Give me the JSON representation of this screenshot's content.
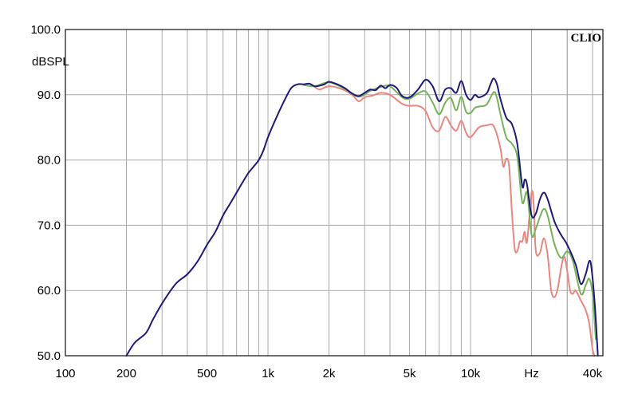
{
  "brand": "CLIO",
  "chart_data": {
    "type": "line",
    "ylabel": "dBSPL",
    "xunit": "Hz",
    "xscale": "log",
    "xlim": [
      100,
      45000
    ],
    "ylim": [
      50,
      100
    ],
    "grid": true,
    "y_ticks": [
      {
        "value": 100,
        "label": "100.0"
      },
      {
        "value": 90,
        "label": "90.0"
      },
      {
        "value": 80,
        "label": "80.0"
      },
      {
        "value": 70,
        "label": "70.0"
      },
      {
        "value": 60,
        "label": "60.0"
      },
      {
        "value": 50,
        "label": "50.0"
      }
    ],
    "x_ticks": [
      {
        "value": 100,
        "label": "100"
      },
      {
        "value": 200,
        "label": "200"
      },
      {
        "value": 500,
        "label": "500"
      },
      {
        "value": 1000,
        "label": "1k"
      },
      {
        "value": 2000,
        "label": "2k"
      },
      {
        "value": 5000,
        "label": "5k"
      },
      {
        "value": 10000,
        "label": "10k"
      },
      {
        "value": 20000,
        "label": "Hz"
      },
      {
        "value": 40000,
        "label": "40k"
      }
    ],
    "series": [
      {
        "color": "#1e1a78",
        "points": [
          [
            200,
            50.0
          ],
          [
            220,
            52.0
          ],
          [
            250,
            53.5
          ],
          [
            270,
            55.5
          ],
          [
            300,
            58.0
          ],
          [
            350,
            61.0
          ],
          [
            400,
            62.5
          ],
          [
            450,
            64.5
          ],
          [
            500,
            67.0
          ],
          [
            550,
            69.0
          ],
          [
            600,
            71.5
          ],
          [
            650,
            73.3
          ],
          [
            700,
            75.0
          ],
          [
            750,
            76.6
          ],
          [
            800,
            78.0
          ],
          [
            850,
            79.0
          ],
          [
            900,
            80.0
          ],
          [
            950,
            81.5
          ],
          [
            1000,
            83.5
          ],
          [
            1100,
            86.5
          ],
          [
            1200,
            89.0
          ],
          [
            1300,
            91.0
          ],
          [
            1400,
            91.6
          ],
          [
            1500,
            91.6
          ],
          [
            1600,
            91.7
          ],
          [
            1700,
            91.3
          ],
          [
            1800,
            91.4
          ],
          [
            1900,
            91.6
          ],
          [
            2000,
            92.0
          ],
          [
            2200,
            91.6
          ],
          [
            2400,
            91.0
          ],
          [
            2600,
            90.2
          ],
          [
            2800,
            89.8
          ],
          [
            3000,
            90.3
          ],
          [
            3200,
            90.8
          ],
          [
            3400,
            90.7
          ],
          [
            3600,
            91.4
          ],
          [
            3800,
            91.0
          ],
          [
            4000,
            91.5
          ],
          [
            4300,
            91.1
          ],
          [
            4600,
            89.8
          ],
          [
            5000,
            89.6
          ],
          [
            5500,
            90.8
          ],
          [
            6000,
            92.3
          ],
          [
            6500,
            91.3
          ],
          [
            7000,
            89.0
          ],
          [
            7500,
            90.8
          ],
          [
            8000,
            91.0
          ],
          [
            8500,
            90.3
          ],
          [
            9000,
            92.1
          ],
          [
            9500,
            90.0
          ],
          [
            10000,
            89.2
          ],
          [
            10500,
            90.0
          ],
          [
            11000,
            89.6
          ],
          [
            12000,
            90.2
          ],
          [
            12500,
            91.5
          ],
          [
            13000,
            92.5
          ],
          [
            13500,
            91.6
          ],
          [
            14000,
            89.5
          ],
          [
            15000,
            86.5
          ],
          [
            16000,
            85.5
          ],
          [
            17000,
            82.5
          ],
          [
            18000,
            76.0
          ],
          [
            18500,
            77.0
          ],
          [
            19000,
            76.2
          ],
          [
            20000,
            71.5
          ],
          [
            21000,
            71.8
          ],
          [
            22000,
            74.0
          ],
          [
            23000,
            75.0
          ],
          [
            24000,
            74.0
          ],
          [
            26000,
            70.5
          ],
          [
            28000,
            68.5
          ],
          [
            30000,
            67.0
          ],
          [
            33000,
            64.0
          ],
          [
            35000,
            61.0
          ],
          [
            37000,
            62.5
          ],
          [
            38500,
            64.5
          ],
          [
            39500,
            63.5
          ],
          [
            41000,
            58.0
          ],
          [
            42500,
            50.0
          ]
        ]
      },
      {
        "color": "#74b35a",
        "points": [
          [
            1500,
            91.5
          ],
          [
            1700,
            91.3
          ],
          [
            2000,
            91.9
          ],
          [
            2400,
            90.9
          ],
          [
            2800,
            89.7
          ],
          [
            3200,
            90.6
          ],
          [
            3600,
            91.2
          ],
          [
            4000,
            91.3
          ],
          [
            4600,
            89.6
          ],
          [
            5000,
            89.4
          ],
          [
            5500,
            90.2
          ],
          [
            6000,
            90.5
          ],
          [
            6500,
            88.8
          ],
          [
            7000,
            87.0
          ],
          [
            7500,
            88.8
          ],
          [
            8000,
            89.5
          ],
          [
            8500,
            87.6
          ],
          [
            9000,
            89.7
          ],
          [
            9500,
            87.4
          ],
          [
            10000,
            87.2
          ],
          [
            10500,
            88.0
          ],
          [
            11000,
            88.2
          ],
          [
            12000,
            88.5
          ],
          [
            13000,
            90.4
          ],
          [
            13500,
            89.5
          ],
          [
            14000,
            87.2
          ],
          [
            15000,
            83.5
          ],
          [
            16000,
            82.5
          ],
          [
            17000,
            80.5
          ],
          [
            18000,
            73.5
          ],
          [
            19000,
            75.0
          ],
          [
            20000,
            68.5
          ],
          [
            21000,
            69.5
          ],
          [
            22000,
            71.3
          ],
          [
            23000,
            72.5
          ],
          [
            24000,
            71.5
          ],
          [
            26000,
            67.0
          ],
          [
            28000,
            65.0
          ],
          [
            30000,
            66.0
          ],
          [
            32000,
            64.5
          ],
          [
            35000,
            59.5
          ],
          [
            37000,
            60.8
          ],
          [
            38500,
            61.8
          ],
          [
            40000,
            59.5
          ],
          [
            41500,
            52.5
          ]
        ]
      },
      {
        "color": "#e8877f",
        "points": [
          [
            1700,
            91.2
          ],
          [
            1800,
            90.8
          ],
          [
            2000,
            91.3
          ],
          [
            2300,
            90.9
          ],
          [
            2600,
            90.0
          ],
          [
            2800,
            89.0
          ],
          [
            3000,
            89.6
          ],
          [
            3300,
            89.9
          ],
          [
            3600,
            90.3
          ],
          [
            4000,
            90.0
          ],
          [
            4600,
            88.6
          ],
          [
            5000,
            88.3
          ],
          [
            5500,
            88.3
          ],
          [
            6000,
            87.5
          ],
          [
            6500,
            85.0
          ],
          [
            7000,
            84.5
          ],
          [
            7500,
            86.6
          ],
          [
            8000,
            85.3
          ],
          [
            8500,
            84.5
          ],
          [
            9000,
            86.0
          ],
          [
            9500,
            84.2
          ],
          [
            10000,
            83.5
          ],
          [
            11000,
            85.0
          ],
          [
            12000,
            85.3
          ],
          [
            13000,
            85.2
          ],
          [
            14000,
            82.0
          ],
          [
            14500,
            79.0
          ],
          [
            15000,
            80.2
          ],
          [
            15500,
            79.0
          ],
          [
            16000,
            72.0
          ],
          [
            16500,
            66.5
          ],
          [
            17000,
            66.0
          ],
          [
            17500,
            67.5
          ],
          [
            18000,
            67.5
          ],
          [
            18500,
            69.0
          ],
          [
            19000,
            67.5
          ],
          [
            20000,
            75.0
          ],
          [
            20500,
            73.0
          ],
          [
            21000,
            66.0
          ],
          [
            22000,
            65.8
          ],
          [
            23000,
            68.0
          ],
          [
            24000,
            65.5
          ],
          [
            25000,
            60.0
          ],
          [
            26000,
            59.0
          ],
          [
            27000,
            60.5
          ],
          [
            28000,
            63.5
          ],
          [
            29000,
            65.2
          ],
          [
            30000,
            63.0
          ],
          [
            31000,
            60.0
          ],
          [
            32000,
            59.5
          ],
          [
            33000,
            60.0
          ],
          [
            35000,
            58.5
          ],
          [
            37000,
            57.0
          ],
          [
            38500,
            55.0
          ],
          [
            40000,
            51.0
          ],
          [
            41000,
            50.0
          ]
        ]
      }
    ]
  }
}
